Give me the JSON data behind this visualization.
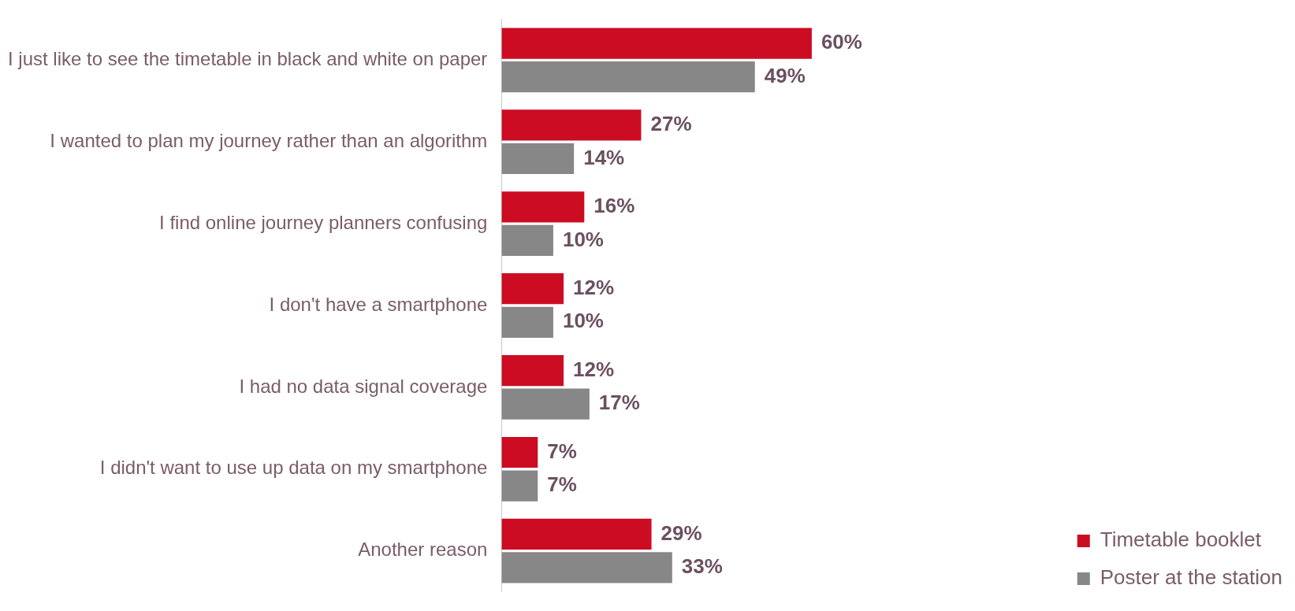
{
  "chart_data": {
    "type": "bar",
    "orientation": "horizontal",
    "categories": [
      "I just like to see the timetable in black and white on paper",
      "I wanted to plan my journey rather than an algorithm",
      "I find online journey planners confusing",
      "I don't have a smartphone",
      "I had no data signal coverage",
      "I didn't want to use up data on my smartphone",
      "Another reason"
    ],
    "series": [
      {
        "name": "Timetable booklet",
        "color": "#cc0c22",
        "values": [
          60,
          27,
          16,
          12,
          12,
          7,
          29
        ],
        "value_labels": [
          "60%",
          "27%",
          "16%",
          "12%",
          "12%",
          "7%",
          "29%"
        ]
      },
      {
        "name": "Poster at the station",
        "color": "#878787",
        "values": [
          49,
          14,
          10,
          10,
          17,
          7,
          33
        ],
        "value_labels": [
          "49%",
          "14%",
          "10%",
          "10%",
          "17%",
          "7%",
          "33%"
        ]
      }
    ],
    "legend": "bottom right",
    "tick_labels": "y"
  }
}
